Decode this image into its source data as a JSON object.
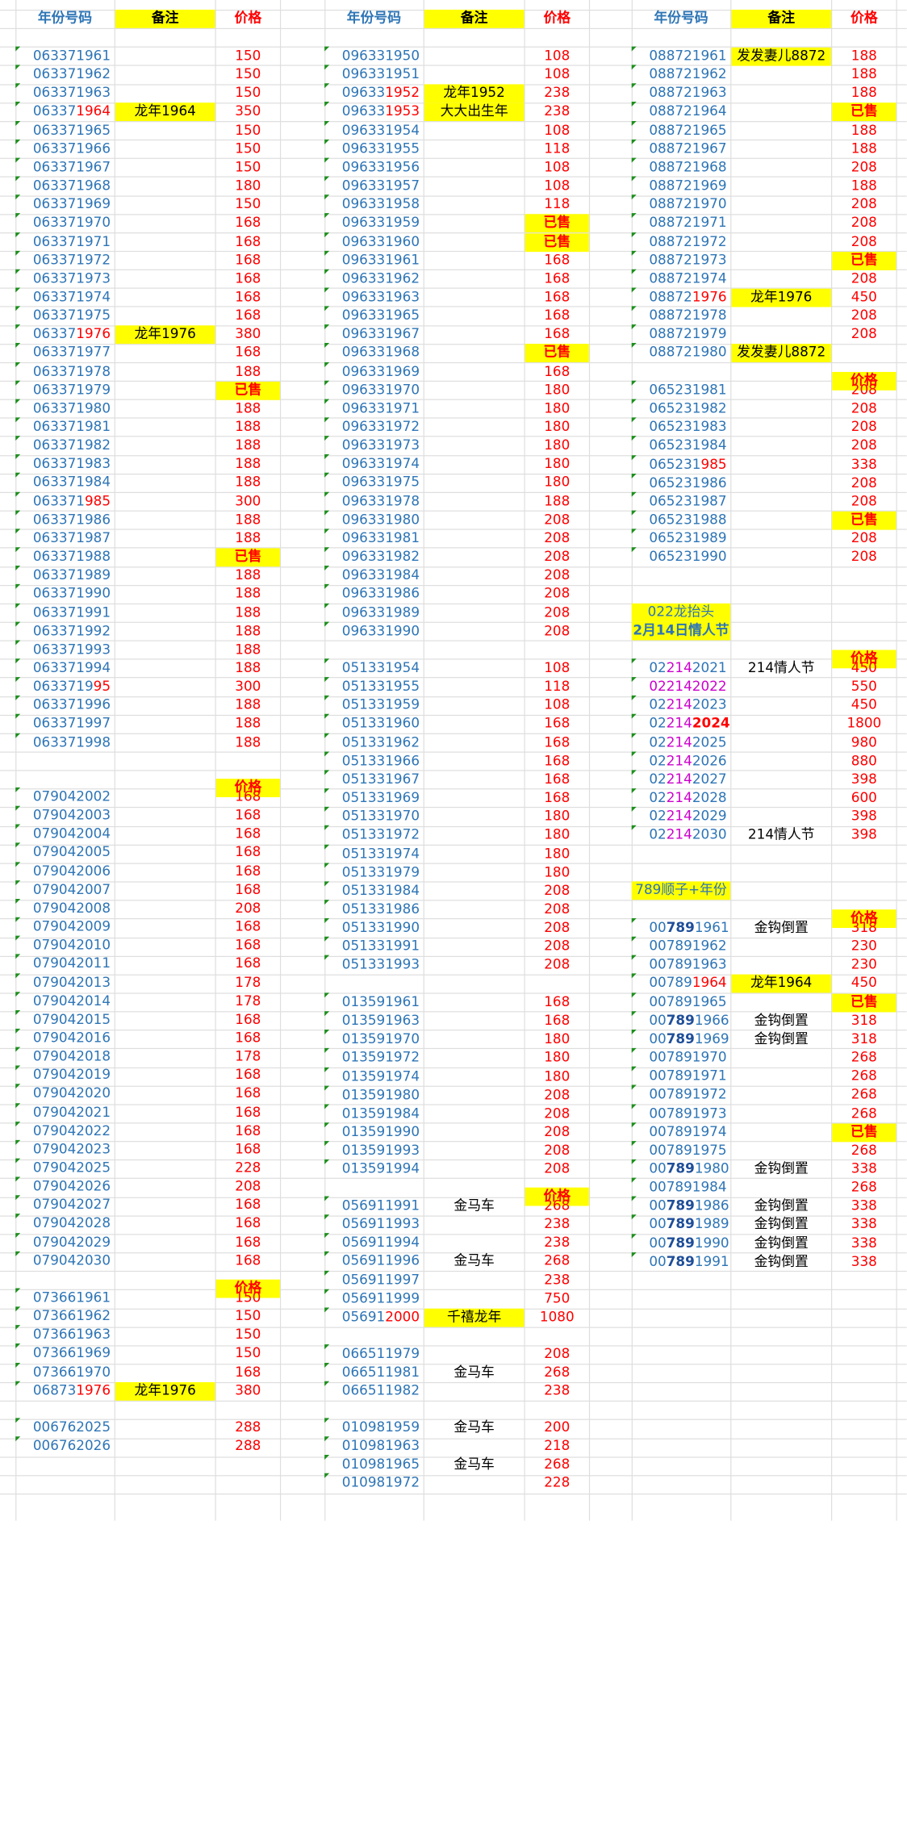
{
  "headers": {
    "number": "年份号码",
    "note": "备注",
    "price": "价格"
  },
  "sections": [
    {
      "col": 0,
      "start": 58,
      "header_row": null,
      "rows": [
        [
          "063371961",
          "",
          "150"
        ],
        [
          "063371962",
          "",
          "150"
        ],
        [
          "063371963",
          "",
          "150"
        ],
        [
          "06337|r:1964",
          "龙年1964",
          "350"
        ],
        [
          "063371965",
          "",
          "150"
        ],
        [
          "063371966",
          "",
          "150"
        ],
        [
          "063371967",
          "",
          "150"
        ],
        [
          "063371968",
          "",
          "180"
        ],
        [
          "063371969",
          "",
          "150"
        ],
        [
          "063371970",
          "",
          "168"
        ],
        [
          "063371971",
          "",
          "168"
        ],
        [
          "063371972",
          "",
          "168"
        ],
        [
          "063371973",
          "",
          "168"
        ],
        [
          "063371974",
          "",
          "168"
        ],
        [
          "063371975",
          "",
          "168"
        ],
        [
          "06337|r:1976",
          "龙年1976",
          "380"
        ],
        [
          "063371977",
          "",
          "168"
        ],
        [
          "063371978",
          "",
          "188"
        ],
        [
          "063371979",
          "",
          "已售"
        ],
        [
          "063371980",
          "",
          "188"
        ],
        [
          "063371981",
          "",
          "188"
        ],
        [
          "063371982",
          "",
          "188"
        ],
        [
          "063371983",
          "",
          "188"
        ],
        [
          "063371984",
          "",
          "188"
        ],
        [
          "063371|r:985",
          "",
          "300"
        ],
        [
          "063371986",
          "",
          "188"
        ],
        [
          "063371987",
          "",
          "188"
        ],
        [
          "063371988",
          "",
          "已售"
        ],
        [
          "063371989",
          "",
          "188"
        ],
        [
          "063371990",
          "",
          "188"
        ],
        [
          "063371991",
          "",
          "188"
        ],
        [
          "063371992",
          "",
          "188"
        ],
        [
          "063371993",
          "",
          "188"
        ],
        [
          "063371994",
          "",
          "188"
        ],
        [
          "0633719|r:95",
          "",
          "300"
        ],
        [
          "063371996",
          "",
          "188"
        ],
        [
          "063371997",
          "",
          "188"
        ],
        [
          "063371998",
          "",
          "188"
        ]
      ]
    },
    {
      "col": 0,
      "start": 823,
      "header_row": 804,
      "rows": [
        [
          "079042002",
          "",
          "168"
        ],
        [
          "079042003",
          "",
          "168"
        ],
        [
          "079042004",
          "",
          "168"
        ],
        [
          "079042005",
          "",
          "168"
        ],
        [
          "079042006",
          "",
          "168"
        ],
        [
          "079042007",
          "",
          "168"
        ],
        [
          "079042008",
          "",
          "208"
        ],
        [
          "079042009",
          "",
          "168"
        ],
        [
          "079042010",
          "",
          "168"
        ],
        [
          "079042011",
          "",
          "168"
        ],
        [
          "079042013",
          "",
          "178"
        ],
        [
          "079042014",
          "",
          "178"
        ],
        [
          "079042015",
          "",
          "168"
        ],
        [
          "079042016",
          "",
          "168"
        ],
        [
          "079042018",
          "",
          "178"
        ],
        [
          "079042019",
          "",
          "168"
        ],
        [
          "079042020",
          "",
          "168"
        ],
        [
          "079042021",
          "",
          "168"
        ],
        [
          "079042022",
          "",
          "168"
        ],
        [
          "079042023",
          "",
          "168"
        ],
        [
          "079042025",
          "",
          "228"
        ],
        [
          "079042026",
          "",
          "208"
        ],
        [
          "079042027",
          "",
          "168"
        ],
        [
          "079042028",
          "",
          "168"
        ],
        [
          "079042029",
          "",
          "168"
        ],
        [
          "079042030",
          "",
          "168"
        ]
      ]
    },
    {
      "col": 0,
      "start": 1340,
      "header_row": 1321,
      "rows": [
        [
          "073661961",
          "",
          "150"
        ],
        [
          "073661962",
          "",
          "150"
        ],
        [
          "073661963",
          "",
          "150"
        ],
        [
          "073661969",
          "",
          "150"
        ],
        [
          "073661970",
          "",
          "168"
        ],
        [
          "06873|r:1976",
          "龙年1976",
          "380"
        ]
      ]
    },
    {
      "col": 0,
      "start": 1474,
      "header_row": null,
      "rows": [
        [
          "006762025",
          "",
          "288"
        ],
        [
          "006762026",
          "",
          "288"
        ]
      ]
    },
    {
      "col": 1,
      "start": 58,
      "header_row": null,
      "rows": [
        [
          "096331950",
          "",
          "108"
        ],
        [
          "096331951",
          "",
          "108"
        ],
        [
          "09633|r:1952",
          "龙年1952",
          "238"
        ],
        [
          "09633|r:1953",
          "大大出生年",
          "238"
        ],
        [
          "096331954",
          "",
          "108"
        ],
        [
          "096331955",
          "",
          "118"
        ],
        [
          "096331956",
          "",
          "108"
        ],
        [
          "096331957",
          "",
          "108"
        ],
        [
          "096331958",
          "",
          "118"
        ],
        [
          "096331959",
          "",
          "已售"
        ],
        [
          "096331960",
          "",
          "已售"
        ],
        [
          "096331961",
          "",
          "168"
        ],
        [
          "096331962",
          "",
          "168"
        ],
        [
          "096331963",
          "",
          "168"
        ],
        [
          "096331965",
          "",
          "168"
        ],
        [
          "096331967",
          "",
          "168"
        ],
        [
          "096331968",
          "",
          "已售"
        ],
        [
          "096331969",
          "",
          "168"
        ],
        [
          "096331970",
          "",
          "180"
        ],
        [
          "096331971",
          "",
          "180"
        ],
        [
          "096331972",
          "",
          "180"
        ],
        [
          "096331973",
          "",
          "180"
        ],
        [
          "096331974",
          "",
          "180"
        ],
        [
          "096331975",
          "",
          "180"
        ],
        [
          "096331978",
          "",
          "188"
        ],
        [
          "096331980",
          "",
          "208"
        ],
        [
          "096331981",
          "",
          "208"
        ],
        [
          "096331982",
          "",
          "208"
        ],
        [
          "096331984",
          "",
          "208"
        ],
        [
          "096331986",
          "",
          "208"
        ],
        [
          "096331989",
          "",
          "208"
        ],
        [
          "096331990",
          "",
          "208"
        ]
      ]
    },
    {
      "col": 1,
      "start": 690,
      "header_row": null,
      "rows": [
        [
          "051331954",
          "",
          "108"
        ],
        [
          "051331955",
          "",
          "118"
        ],
        [
          "051331959",
          "",
          "108"
        ],
        [
          "051331960",
          "",
          "168"
        ],
        [
          "051331962",
          "",
          "168"
        ],
        [
          "051331966",
          "",
          "168"
        ],
        [
          "051331967",
          "",
          "168"
        ],
        [
          "051331969",
          "",
          "168"
        ],
        [
          "051331970",
          "",
          "180"
        ],
        [
          "051331972",
          "",
          "180"
        ],
        [
          "051331974",
          "",
          "180"
        ],
        [
          "051331979",
          "",
          "180"
        ],
        [
          "051331984",
          "",
          "208"
        ],
        [
          "051331986",
          "",
          "208"
        ],
        [
          "051331990",
          "",
          "208"
        ],
        [
          "051331991",
          "",
          "208"
        ],
        [
          "051331993",
          "",
          "208"
        ]
      ]
    },
    {
      "col": 1,
      "start": 1035,
      "header_row": null,
      "rows": [
        [
          "013591961",
          "",
          "168"
        ],
        [
          "013591963",
          "",
          "168"
        ],
        [
          "013591970",
          "",
          "180"
        ],
        [
          "013591972",
          "",
          "180"
        ],
        [
          "013591974",
          "",
          "180"
        ],
        [
          "013591980",
          "",
          "208"
        ],
        [
          "013591984",
          "",
          "208"
        ],
        [
          "013591990",
          "",
          "208"
        ],
        [
          "013591993",
          "",
          "208"
        ],
        [
          "013591994",
          "",
          "208"
        ]
      ]
    },
    {
      "col": 1,
      "start": 1245,
      "header_row": 1226,
      "rows": [
        [
          "056911991",
          "金马车",
          "268"
        ],
        [
          "056911993",
          "",
          "238"
        ],
        [
          "056911994",
          "",
          "238"
        ],
        [
          "056911996",
          "金马车",
          "268"
        ],
        [
          "056911997",
          "",
          "238"
        ],
        [
          "056911999",
          "",
          "750"
        ],
        [
          "05691|r:2000",
          "千禧龙年",
          "1080"
        ]
      ]
    },
    {
      "col": 1,
      "start": 1398,
      "header_row": null,
      "rows": [
        [
          "066511979",
          "",
          "208"
        ],
        [
          "066511981",
          "金马车",
          "268"
        ],
        [
          "066511982",
          "",
          "238"
        ]
      ]
    },
    {
      "col": 1,
      "start": 1474,
      "header_row": null,
      "rows": [
        [
          "010981959",
          "金马车",
          "200"
        ],
        [
          "010981963",
          "",
          "218"
        ],
        [
          "010981965",
          "金马车",
          "268"
        ],
        [
          "010981972",
          "",
          "228"
        ]
      ]
    },
    {
      "col": 2,
      "start": 58,
      "header_row": null,
      "rows": [
        [
          "088721961",
          "发发妻儿8872",
          "188"
        ],
        [
          "088721962",
          "",
          "188"
        ],
        [
          "088721963",
          "",
          "188"
        ],
        [
          "088721964",
          "",
          "已售"
        ],
        [
          "088721965",
          "",
          "188"
        ],
        [
          "088721967",
          "",
          "188"
        ],
        [
          "088721968",
          "",
          "208"
        ],
        [
          "088721969",
          "",
          "188"
        ],
        [
          "088721970",
          "",
          "208"
        ],
        [
          "088721971",
          "",
          "208"
        ],
        [
          "088721972",
          "",
          "208"
        ],
        [
          "088721973",
          "",
          "已售"
        ],
        [
          "088721974",
          "",
          "208"
        ],
        [
          "08872|r:1976",
          "龙年1976",
          "450"
        ],
        [
          "088721978",
          "",
          "208"
        ],
        [
          "088721979",
          "",
          "208"
        ],
        [
          "088721980",
          "发发妻儿8872",
          ""
        ]
      ]
    },
    {
      "col": 2,
      "start": 403,
      "header_row": 384,
      "rows": [
        [
          "065231981",
          "",
          "208"
        ],
        [
          "065231982",
          "",
          "208"
        ],
        [
          "065231983",
          "",
          "208"
        ],
        [
          "065231984",
          "",
          "208"
        ],
        [
          "065231|r:985",
          "",
          "338"
        ],
        [
          "065231986",
          "",
          "208"
        ],
        [
          "065231987",
          "",
          "208"
        ],
        [
          "065231988",
          "",
          "已售"
        ],
        [
          "065231989",
          "",
          "208"
        ],
        [
          "065231990",
          "",
          "208"
        ]
      ]
    },
    {
      "col": 2,
      "start": 690,
      "header_row": 671,
      "rows": [
        [
          "02|m:214|n:2021",
          "214情人节",
          "450"
        ],
        [
          "m:022142022",
          "",
          "550"
        ],
        [
          "02|m:214|n:2023",
          "",
          "450"
        ],
        [
          "02|m:214|rb:2024",
          "",
          "1800"
        ],
        [
          "02|m:214|n:2025",
          "",
          "980"
        ],
        [
          "02|m:214|n:2026",
          "",
          "880"
        ],
        [
          "02|m:214|n:2027",
          "",
          "398"
        ],
        [
          "02|m:214|n:2028",
          "",
          "600"
        ],
        [
          "02|m:214|n:2029",
          "",
          "398"
        ],
        [
          "02|m:214|n:2030",
          "214情人节",
          "398"
        ]
      ]
    },
    {
      "col": 2,
      "start": 958,
      "header_row": 939,
      "rows": [
        [
          "00|b:789|n:1961",
          "金钩倒置",
          "318"
        ],
        [
          "007891962",
          "",
          "230"
        ],
        [
          "007891963",
          "",
          "230"
        ],
        [
          "00789|r:1964",
          "龙年1964",
          "450"
        ],
        [
          "007891965",
          "",
          "已售"
        ],
        [
          "00|b:789|n:1966",
          "金钩倒置",
          "318"
        ],
        [
          "00|b:789|n:1969",
          "金钩倒置",
          "318"
        ],
        [
          "007891970",
          "",
          "268"
        ],
        [
          "007891971",
          "",
          "268"
        ],
        [
          "007891972",
          "",
          "268"
        ],
        [
          "007891973",
          "",
          "268"
        ],
        [
          "007891974",
          "",
          "已售"
        ],
        [
          "007891975",
          "",
          "268"
        ],
        [
          "00|b:789|n:1980",
          "金钩倒置",
          "338"
        ],
        [
          "007891984",
          "",
          "268"
        ],
        [
          "00|b:789|n:1986",
          "金钩倒置",
          "338"
        ],
        [
          "00|b:789|n:1989",
          "金钩倒置",
          "338"
        ],
        [
          "00|b:789|n:1990",
          "金钩倒置",
          "338"
        ],
        [
          "00|b:789|n:1991",
          "金钩倒置",
          "338"
        ]
      ]
    }
  ],
  "labels": {
    "dragon_head": "022龙抬头",
    "valentine": "2月14日情人节",
    "straight_year": "789顺子+年份"
  },
  "colors": {
    "yellow": "#ffff00",
    "number_blue": "#2e75b6",
    "price_red": "#ff0000"
  }
}
